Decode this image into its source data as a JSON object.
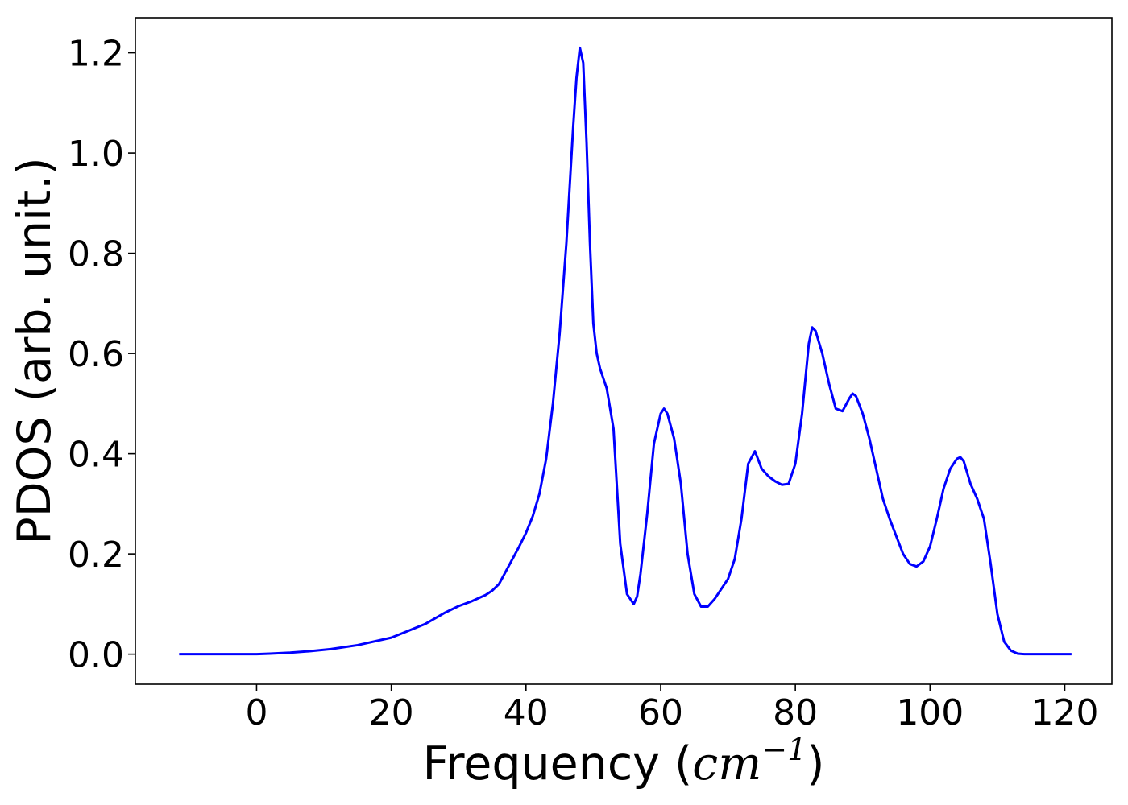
{
  "chart_data": {
    "type": "line",
    "xlabel_prefix": "Frequency (",
    "xlabel_unit": "cm",
    "xlabel_exp": "−1",
    "xlabel_suffix": ")",
    "ylabel": "PDOS (arb. unit.)",
    "xlim": [
      -18,
      127
    ],
    "ylim": [
      -0.06,
      1.27
    ],
    "xticks": [
      0,
      20,
      40,
      60,
      80,
      100,
      120
    ],
    "xtick_labels": [
      "0",
      "20",
      "40",
      "60",
      "80",
      "100",
      "120"
    ],
    "yticks": [
      0.0,
      0.2,
      0.4,
      0.6,
      0.8,
      1.0,
      1.2
    ],
    "ytick_labels": [
      "0.0",
      "0.2",
      "0.4",
      "0.6",
      "0.8",
      "1.0",
      "1.2"
    ],
    "grid": false,
    "series": [
      {
        "color": "#0000ff",
        "x": [
          -11.5,
          -5,
          0,
          2,
          5,
          8,
          11,
          15,
          20,
          25,
          28,
          30,
          32,
          34,
          35,
          36,
          37,
          38,
          39,
          40,
          41,
          42,
          43,
          44,
          45,
          46,
          47,
          47.5,
          48,
          48.5,
          49,
          49.5,
          50,
          50.5,
          51,
          52,
          53,
          54,
          55,
          56,
          56.5,
          57,
          58,
          59,
          60,
          60.5,
          61,
          62,
          63,
          64,
          65,
          66,
          67,
          68,
          69,
          70,
          71,
          72,
          73,
          74,
          75,
          76,
          77,
          78,
          79,
          80,
          81,
          82,
          82.5,
          83,
          84,
          85,
          86,
          87,
          88,
          88.5,
          89,
          90,
          91,
          92,
          93,
          94,
          95,
          96,
          97,
          98,
          99,
          100,
          101,
          102,
          103,
          104,
          104.5,
          105,
          106,
          107,
          108,
          109,
          110,
          111,
          112,
          113,
          114,
          121
        ],
        "y": [
          0.0,
          0.0,
          0.0,
          0.001,
          0.003,
          0.006,
          0.01,
          0.018,
          0.033,
          0.06,
          0.083,
          0.096,
          0.106,
          0.118,
          0.127,
          0.14,
          0.165,
          0.19,
          0.215,
          0.242,
          0.275,
          0.32,
          0.39,
          0.5,
          0.64,
          0.82,
          1.05,
          1.15,
          1.21,
          1.18,
          1.02,
          0.82,
          0.66,
          0.6,
          0.57,
          0.53,
          0.45,
          0.22,
          0.12,
          0.1,
          0.115,
          0.16,
          0.28,
          0.42,
          0.48,
          0.49,
          0.48,
          0.43,
          0.34,
          0.2,
          0.12,
          0.095,
          0.095,
          0.11,
          0.13,
          0.15,
          0.19,
          0.27,
          0.38,
          0.405,
          0.37,
          0.355,
          0.345,
          0.338,
          0.34,
          0.38,
          0.48,
          0.62,
          0.652,
          0.645,
          0.6,
          0.54,
          0.49,
          0.485,
          0.51,
          0.52,
          0.515,
          0.48,
          0.43,
          0.37,
          0.31,
          0.27,
          0.235,
          0.2,
          0.18,
          0.175,
          0.185,
          0.215,
          0.27,
          0.33,
          0.37,
          0.39,
          0.393,
          0.385,
          0.34,
          0.31,
          0.27,
          0.18,
          0.08,
          0.025,
          0.007,
          0.001,
          0.0,
          0.0
        ]
      }
    ]
  }
}
